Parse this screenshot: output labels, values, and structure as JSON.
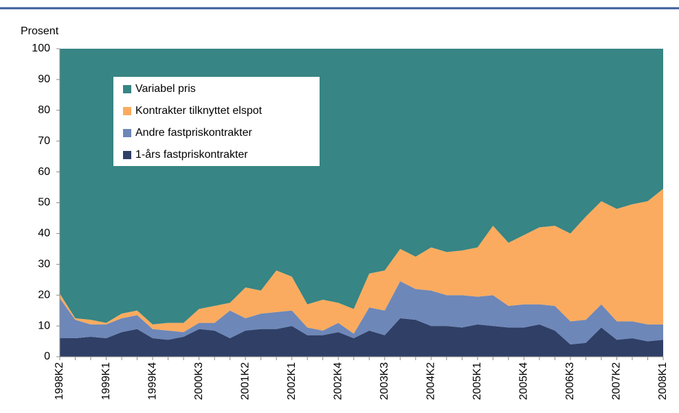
{
  "chart_data": {
    "type": "stacked-area",
    "y_label": "Prosent",
    "categories": [
      "1998K2",
      null,
      null,
      "1999K1",
      null,
      null,
      "1999K4",
      null,
      null,
      "2000K3",
      null,
      null,
      "2001K2",
      null,
      null,
      "2002K1",
      null,
      null,
      "2002K4",
      null,
      null,
      "2003K3",
      null,
      null,
      "2004K2",
      null,
      null,
      "2005K1",
      null,
      null,
      "2005K4",
      null,
      null,
      "2006K3",
      null,
      null,
      "2007K2",
      null,
      null,
      "2008K1"
    ],
    "ylim": [
      0,
      100
    ],
    "yticks": [
      0,
      10,
      20,
      30,
      40,
      50,
      60,
      70,
      80,
      90,
      100
    ],
    "series": [
      {
        "name": "1-års fastpriskontrakter",
        "color": "#2f3f66",
        "values": [
          6,
          6,
          6.5,
          6,
          8,
          9,
          6,
          5.5,
          6.5,
          9,
          8.5,
          6,
          8.5,
          9,
          9,
          10,
          7,
          7,
          8,
          6,
          8.5,
          7,
          12.5,
          12,
          10,
          10,
          9.5,
          10.5,
          10,
          9.5,
          9.5,
          10.5,
          8.5,
          4,
          4.5,
          9.5,
          5.5,
          6,
          5,
          5.5
        ]
      },
      {
        "name": "Andre fastpriskontrakter",
        "color": "#6d87b8",
        "values": [
          13,
          6,
          4,
          4.5,
          4.5,
          4.5,
          3,
          3,
          1.5,
          2,
          2.5,
          9,
          4,
          5,
          5.5,
          5,
          2.5,
          1.5,
          3,
          1.5,
          7.5,
          8,
          12,
          10,
          11.5,
          10,
          10.5,
          9,
          10,
          7,
          7.5,
          6.5,
          8,
          7.5,
          7.5,
          7.5,
          6,
          5.5,
          5.5,
          5
        ]
      },
      {
        "name": "Kontrakter tilknyttet elspot",
        "color": "#fbab5f",
        "values": [
          1.5,
          0.5,
          1.5,
          0.5,
          1.5,
          1.5,
          1.5,
          2.5,
          3,
          4.5,
          5.5,
          2.5,
          10,
          7.5,
          13.5,
          11,
          7.5,
          10,
          6.5,
          8,
          11,
          13,
          10.5,
          10.5,
          14,
          14,
          14.5,
          16,
          22.5,
          20.5,
          22.5,
          25,
          26,
          28.5,
          33.5,
          33.5,
          36.5,
          38,
          40,
          44
        ]
      },
      {
        "name": "Variabel pris",
        "color": "#378584",
        "values": [
          79.5,
          87.5,
          88,
          89,
          86,
          85,
          89.5,
          89,
          89,
          84.5,
          83.5,
          82.5,
          77.5,
          78.5,
          72,
          74,
          83,
          81.5,
          82.5,
          84.5,
          73,
          72,
          65,
          67.5,
          64.5,
          66,
          65.5,
          64.5,
          57.5,
          63,
          60.5,
          58,
          57.5,
          60,
          54.5,
          49.5,
          52,
          50.5,
          49.5,
          45.5
        ]
      }
    ]
  }
}
